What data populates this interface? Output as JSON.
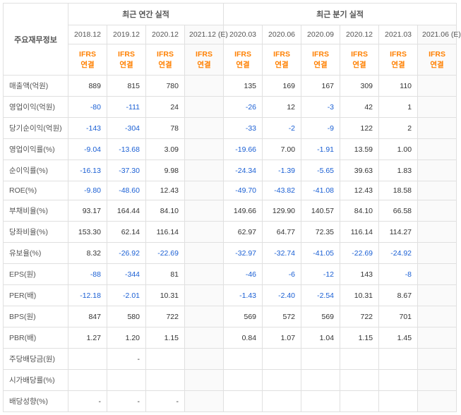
{
  "headers": {
    "rowLabelHeader": "주요재무정보",
    "annualGroup": "최근 연간 실적",
    "quarterGroup": "최근 분기 실적",
    "ifrsLabel": "IFRS\n연결",
    "annualPeriods": [
      "2018.12",
      "2019.12",
      "2020.12",
      "2021.12 (E)"
    ],
    "quarterPeriods": [
      "2020.03",
      "2020.06",
      "2020.09",
      "2020.12",
      "2021.03",
      "2021.06 (E)"
    ]
  },
  "colors": {
    "negative": "#1a5fd4",
    "accent": "#ff8000",
    "border": "#e0e0e0",
    "text": "#333333",
    "estBg": "#fafafa"
  },
  "rows": [
    {
      "label": "매출액(억원)",
      "annual": [
        "889",
        "815",
        "780",
        ""
      ],
      "quarter": [
        "135",
        "169",
        "167",
        "309",
        "110",
        ""
      ]
    },
    {
      "label": "영업이익(억원)",
      "annual": [
        "-80",
        "-111",
        "24",
        ""
      ],
      "quarter": [
        "-26",
        "12",
        "-3",
        "42",
        "1",
        ""
      ]
    },
    {
      "label": "당기순이익(억원)",
      "annual": [
        "-143",
        "-304",
        "78",
        ""
      ],
      "quarter": [
        "-33",
        "-2",
        "-9",
        "122",
        "2",
        ""
      ]
    },
    {
      "label": "영업이익률(%)",
      "annual": [
        "-9.04",
        "-13.68",
        "3.09",
        ""
      ],
      "quarter": [
        "-19.66",
        "7.00",
        "-1.91",
        "13.59",
        "1.00",
        ""
      ]
    },
    {
      "label": "순이익률(%)",
      "annual": [
        "-16.13",
        "-37.30",
        "9.98",
        ""
      ],
      "quarter": [
        "-24.34",
        "-1.39",
        "-5.65",
        "39.63",
        "1.83",
        ""
      ]
    },
    {
      "label": "ROE(%)",
      "annual": [
        "-9.80",
        "-48.60",
        "12.43",
        ""
      ],
      "quarter": [
        "-49.70",
        "-43.82",
        "-41.08",
        "12.43",
        "18.58",
        ""
      ]
    },
    {
      "label": "부채비율(%)",
      "annual": [
        "93.17",
        "164.44",
        "84.10",
        ""
      ],
      "quarter": [
        "149.66",
        "129.90",
        "140.57",
        "84.10",
        "66.58",
        ""
      ]
    },
    {
      "label": "당좌비율(%)",
      "annual": [
        "153.30",
        "62.14",
        "116.14",
        ""
      ],
      "quarter": [
        "62.97",
        "64.77",
        "72.35",
        "116.14",
        "114.27",
        ""
      ]
    },
    {
      "label": "유보율(%)",
      "annual": [
        "8.32",
        "-26.92",
        "-22.69",
        ""
      ],
      "quarter": [
        "-32.97",
        "-32.74",
        "-41.05",
        "-22.69",
        "-24.92",
        ""
      ]
    },
    {
      "label": "EPS(원)",
      "annual": [
        "-88",
        "-344",
        "81",
        ""
      ],
      "quarter": [
        "-46",
        "-6",
        "-12",
        "143",
        "-8",
        ""
      ]
    },
    {
      "label": "PER(배)",
      "annual": [
        "-12.18",
        "-2.01",
        "10.31",
        ""
      ],
      "quarter": [
        "-1.43",
        "-2.40",
        "-2.54",
        "10.31",
        "8.67",
        ""
      ]
    },
    {
      "label": "BPS(원)",
      "annual": [
        "847",
        "580",
        "722",
        ""
      ],
      "quarter": [
        "569",
        "572",
        "569",
        "722",
        "701",
        ""
      ]
    },
    {
      "label": "PBR(배)",
      "annual": [
        "1.27",
        "1.20",
        "1.15",
        ""
      ],
      "quarter": [
        "0.84",
        "1.07",
        "1.04",
        "1.15",
        "1.45",
        ""
      ]
    },
    {
      "label": "주당배당금(원)",
      "annual": [
        "",
        "-",
        "",
        ""
      ],
      "quarter": [
        "",
        "",
        "",
        "",
        "",
        ""
      ]
    },
    {
      "label": "시가배당률(%)",
      "annual": [
        "",
        "",
        "",
        ""
      ],
      "quarter": [
        "",
        "",
        "",
        "",
        "",
        ""
      ]
    },
    {
      "label": "배당성향(%)",
      "annual": [
        "-",
        "-",
        "-",
        ""
      ],
      "quarter": [
        "",
        "",
        "",
        "",
        "",
        ""
      ]
    }
  ]
}
